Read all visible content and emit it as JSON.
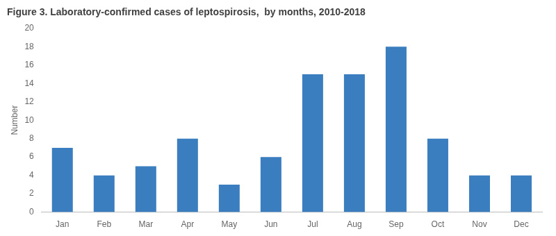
{
  "chart_data": {
    "type": "bar",
    "title": "Figure 3. Laboratory-confirmed cases of leptospirosis,  by months, 2010-2018",
    "categories": [
      "Jan",
      "Feb",
      "Mar",
      "Apr",
      "May",
      "Jun",
      "Jul",
      "Aug",
      "Sep",
      "Oct",
      "Nov",
      "Dec"
    ],
    "values": [
      7,
      4,
      5,
      8,
      3,
      6,
      15,
      15,
      18,
      8,
      4,
      4
    ],
    "color": "#3A7EBF",
    "ylabel": "Number",
    "ylim": [
      0,
      20
    ],
    "yticks": [
      0,
      2,
      4,
      6,
      8,
      10,
      12,
      14,
      16,
      18,
      20
    ],
    "grid": false
  }
}
